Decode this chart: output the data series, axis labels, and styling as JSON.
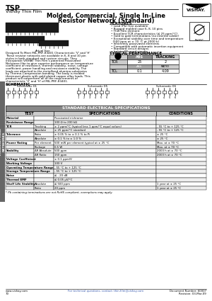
{
  "title_main": "TSP",
  "subtitle_company": "Vishay Thin Film",
  "doc_title_line1": "Molded, Commercial, Single In-Line",
  "doc_title_line2": "Resistor Network (Standard)",
  "features_title": "FEATURES",
  "features": [
    "Lead (Pb) free available",
    "Rugged molded case 6, 8, 10 pins",
    "Thin Film element",
    "Excellent TCR characteristics (≤ 25 ppm/°C)",
    "Gold to gold terminations (no internal solder)",
    "Exceptional stability over time and temperature",
    "  (500 ppm at ± 70 °C at 2000 h)",
    "Inherently passivated elements",
    "Compatible with automatic insertion equipment",
    "Standard circuit designs",
    "Isolated/Bussed circuits"
  ],
  "typical_perf_title": "TYPICAL PERFORMANCE",
  "schematic_title": "SCHEMATIC",
  "spec_title": "STANDARD ELECTRICAL SPECIFICATIONS",
  "spec_col1": "TEST",
  "spec_col2": "SPECIFICATIONS",
  "spec_col3": "CONDITIONS",
  "spec_rows": [
    [
      "Material",
      "",
      "Passivated nichrome",
      ""
    ],
    [
      "Resistance Range",
      "",
      "100 Ω to 200 kΩ",
      ""
    ],
    [
      "TCR",
      "Tracking",
      "± 2 ppm/°C (typical less 1 ppm/°C equal values)",
      "- 55 °C to + 125 °C"
    ],
    [
      "",
      "Absolute",
      "± 25 ppm/°C standard",
      "- 55 °C to + 125 °C"
    ],
    [
      "Tolerance",
      "Ratio",
      "± 0.05 % to ± 0.1 % to Pi",
      "± 25 °C"
    ],
    [
      "",
      "Absolute",
      "± 0.1 % to ± 1.0 %",
      "± 25 °C"
    ],
    [
      "Power Rating",
      "Per element",
      "500 mW per element typical at ± 25 °C",
      "Max. at ± 70 °C"
    ],
    [
      "",
      "Package",
      "0.5 W",
      "Max. at ± 70 °C"
    ],
    [
      "Stability",
      "ΔR Absolute",
      "500 ppm",
      "2000 h at ± 70 °C"
    ],
    [
      "",
      "ΔR Ratio",
      "150 ppm",
      "2000 h at ± 70 °C"
    ],
    [
      "Voltage Coefficient",
      "",
      "± 0.1 ppm/V",
      ""
    ],
    [
      "Working Voltage",
      "",
      "100 V",
      ""
    ],
    [
      "Operating Temperature Range",
      "",
      "- 55 °C to + 125 °C",
      ""
    ],
    [
      "Storage Temperature Range",
      "",
      "- 55 °C to + 125 °C",
      ""
    ],
    [
      "Noise",
      "",
      "≤ - 20 dB",
      ""
    ],
    [
      "Thermal EMF",
      "",
      "≤ 0.05 μV/°C",
      ""
    ],
    [
      "Shelf Life Stability",
      "Absolute",
      "≤ 500 ppm",
      "1 year at ± 25 °C"
    ],
    [
      "",
      "Ratio",
      "20 ppm",
      "1 year at ± 25 °C"
    ]
  ],
  "footnote": "* Pb containing terminations are not RoHS compliant, exemptions may apply.",
  "footer_left": "www.vishay.com",
  "footer_center": "For technical questions, contact: thin.film@vishay.com",
  "footer_right_line1": "Document Number: 60007",
  "footer_right_line2": "Revision: 03-Mar-09",
  "page_num": "70",
  "sidebar_text": "THROUGH HOLE\nNETWORKS",
  "desc_line0": "Designed To Meet MIL-PRF-83401 Characteristic 'V' and 'H'",
  "desc_lines": [
    "These resistor networks are available in 6, 8 and 10 pin",
    "styles in both standard and custom circuits. They",
    "incorporate VISHAY Thin Film's patented Passivated",
    "Nichrome film to give superior performance on temperature",
    "coefficient of resistance, thermal stability, noise, voltage",
    "coefficient, power handling and resistance stability. The",
    "leads are attached to the metallized alumina substrates",
    "by Thermo-Compression bonding. The body is molded",
    "thermoset plastic with gold plated copper alloy leads. This",
    "product will outperform all of the requirements of",
    "characteristic 'V' and 'H' of MIL-PRF-83401."
  ]
}
